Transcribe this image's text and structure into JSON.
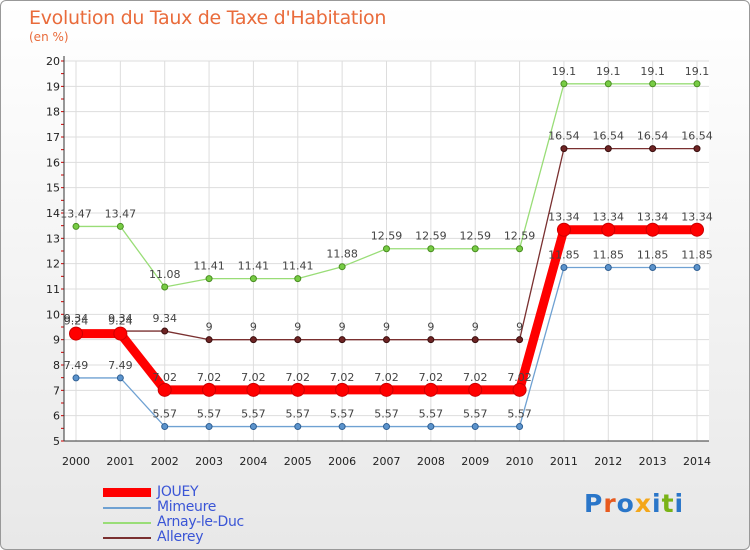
{
  "header": {
    "title": "Evolution du Taux de Taxe d'Habitation",
    "subtitle": "(en %)"
  },
  "logo": {
    "text": "Proxiti",
    "colors": [
      "#2a76c9",
      "#e85a1e",
      "#2a76c9",
      "#f4a71b",
      "#2a76c9",
      "#7ab317",
      "#2a76c9"
    ]
  },
  "chart_data": {
    "type": "line",
    "title": "Evolution du Taux de Taxe d'Habitation",
    "ylabel": "(en %)",
    "xlabel": "",
    "x": [
      "2000",
      "2001",
      "2002",
      "2003",
      "2004",
      "2005",
      "2006",
      "2007",
      "2008",
      "2009",
      "2010",
      "2011",
      "2012",
      "2013",
      "2014"
    ],
    "ylim": [
      5,
      20
    ],
    "yticks": [
      5,
      6,
      7,
      8,
      9,
      10,
      11,
      12,
      13,
      14,
      15,
      16,
      17,
      18,
      19,
      20
    ],
    "grid": true,
    "legend_position": "bottom-left",
    "series": [
      {
        "name": "JOUEY",
        "color": "#ff0000",
        "values": [
          9.24,
          9.24,
          7.02,
          7.02,
          7.02,
          7.02,
          7.02,
          7.02,
          7.02,
          7.02,
          7.02,
          13.34,
          13.34,
          13.34,
          13.34
        ]
      },
      {
        "name": "Mimeure",
        "color": "#6fa1d2",
        "values": [
          7.49,
          7.49,
          5.57,
          5.57,
          5.57,
          5.57,
          5.57,
          5.57,
          5.57,
          5.57,
          5.57,
          11.85,
          11.85,
          11.85,
          11.85
        ]
      },
      {
        "name": "Arnay-le-Duc",
        "color": "#99dd77",
        "values": [
          13.47,
          13.47,
          11.08,
          11.41,
          11.41,
          11.41,
          11.88,
          12.59,
          12.59,
          12.59,
          12.59,
          19.1,
          19.1,
          19.1,
          19.1
        ]
      },
      {
        "name": "Allerey",
        "color": "#7a3030",
        "values": [
          9.34,
          9.34,
          9.34,
          9,
          9,
          9,
          9,
          9,
          9,
          9,
          9,
          16.54,
          16.54,
          16.54,
          16.54
        ]
      }
    ]
  }
}
